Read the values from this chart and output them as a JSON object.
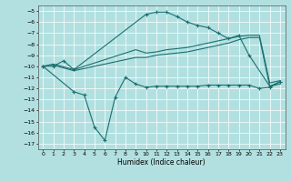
{
  "title": "",
  "xlabel": "Humidex (Indice chaleur)",
  "bg_color": "#b2e0e0",
  "grid_color": "#ffffff",
  "line_color": "#1a7070",
  "xlim": [
    -0.5,
    23.5
  ],
  "ylim": [
    -17.5,
    -4.5
  ],
  "xticks": [
    0,
    1,
    2,
    3,
    4,
    5,
    6,
    7,
    8,
    9,
    10,
    11,
    12,
    13,
    14,
    15,
    16,
    17,
    18,
    19,
    20,
    21,
    22,
    23
  ],
  "yticks": [
    -5,
    -6,
    -7,
    -8,
    -9,
    -10,
    -11,
    -12,
    -13,
    -14,
    -15,
    -16,
    -17
  ],
  "series": [
    {
      "x": [
        0,
        1,
        2,
        3,
        10,
        11,
        12,
        13,
        14,
        15,
        16,
        17,
        18,
        19,
        20,
        22,
        23
      ],
      "y": [
        -10.0,
        -10.0,
        -9.5,
        -10.3,
        -5.3,
        -5.1,
        -5.1,
        -5.5,
        -6.0,
        -6.3,
        -6.5,
        -7.0,
        -7.5,
        -7.2,
        -9.0,
        -11.8,
        -11.4
      ],
      "marker": "+"
    },
    {
      "x": [
        0,
        1,
        3,
        9,
        10,
        11,
        12,
        13,
        14,
        15,
        16,
        17,
        18,
        19,
        20,
        21,
        22,
        23
      ],
      "y": [
        -10.0,
        -9.8,
        -10.3,
        -8.5,
        -8.8,
        -8.7,
        -8.5,
        -8.4,
        -8.3,
        -8.1,
        -7.9,
        -7.7,
        -7.5,
        -7.3,
        -7.2,
        -7.2,
        -11.5,
        -11.3
      ],
      "marker": null
    },
    {
      "x": [
        0,
        1,
        3,
        9,
        10,
        11,
        12,
        13,
        14,
        15,
        16,
        17,
        18,
        19,
        20,
        21,
        22,
        23
      ],
      "y": [
        -10.0,
        -9.9,
        -10.4,
        -9.2,
        -9.2,
        -9.0,
        -8.9,
        -8.8,
        -8.7,
        -8.5,
        -8.3,
        -8.1,
        -7.9,
        -7.6,
        -7.4,
        -7.4,
        -11.8,
        -11.6
      ],
      "marker": null
    },
    {
      "x": [
        0,
        3,
        4,
        5,
        6,
        7,
        8,
        9,
        10,
        11,
        12,
        13,
        14,
        15,
        16,
        17,
        18,
        19,
        20,
        21,
        22,
        23
      ],
      "y": [
        -10.0,
        -12.3,
        -12.6,
        -15.5,
        -16.7,
        -12.8,
        -11.0,
        -11.6,
        -11.9,
        -11.8,
        -11.8,
        -11.8,
        -11.8,
        -11.8,
        -11.7,
        -11.7,
        -11.7,
        -11.7,
        -11.7,
        -12.0,
        -11.9,
        -11.4
      ],
      "marker": "+"
    }
  ]
}
